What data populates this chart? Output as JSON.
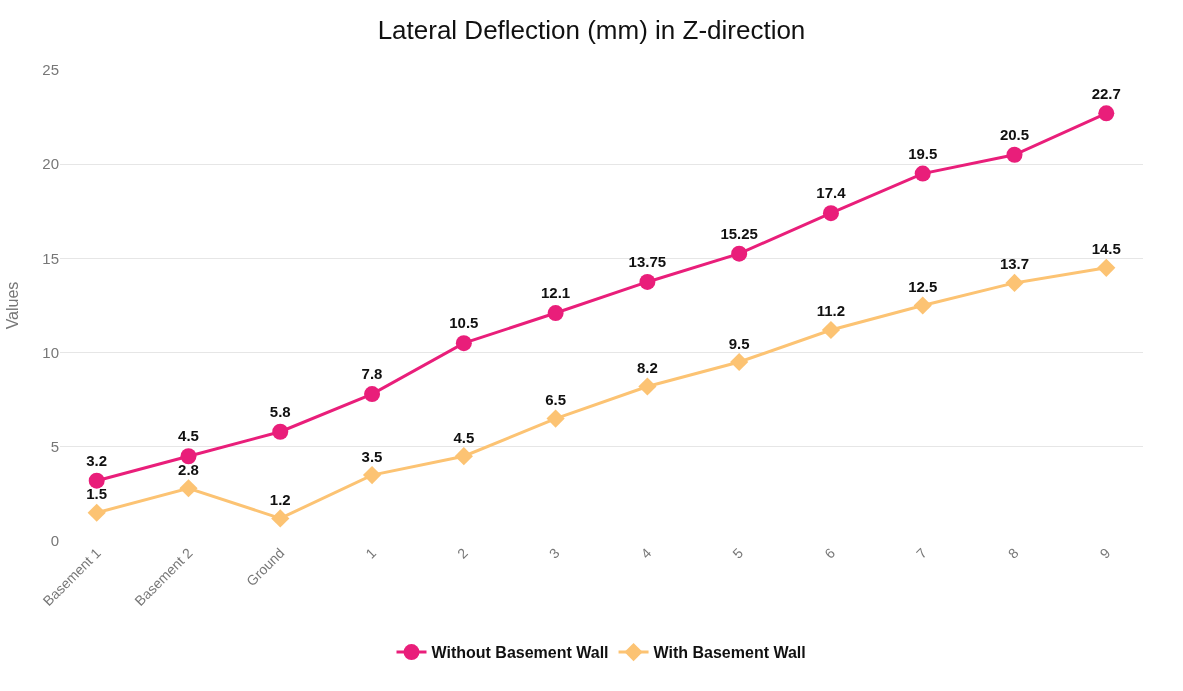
{
  "chart_data": {
    "type": "line",
    "title": "Lateral Deflection (mm) in Z-direction",
    "ylabel": "Values",
    "categories": [
      "Basement 1",
      "Basement 2",
      "Ground",
      "1",
      "2",
      "3",
      "4",
      "5",
      "6",
      "7",
      "8",
      "9"
    ],
    "series": [
      {
        "name": "Without Basement Wall",
        "color": "#e91e7a",
        "marker": "circle",
        "values": [
          3.2,
          4.5,
          5.8,
          7.8,
          10.5,
          12.1,
          13.75,
          15.25,
          17.4,
          19.5,
          20.5,
          22.7
        ]
      },
      {
        "name": "With Basement Wall",
        "color": "#fcc373",
        "marker": "diamond",
        "values": [
          1.5,
          2.8,
          1.2,
          3.5,
          4.5,
          6.5,
          8.2,
          9.5,
          11.2,
          12.5,
          13.7,
          14.5
        ]
      }
    ],
    "ylim": [
      0,
      25
    ],
    "yticks": [
      0,
      5,
      10,
      15,
      20,
      25
    ],
    "grid": "y",
    "legend": "bottom",
    "data_labels": true,
    "line_style": "solid"
  }
}
